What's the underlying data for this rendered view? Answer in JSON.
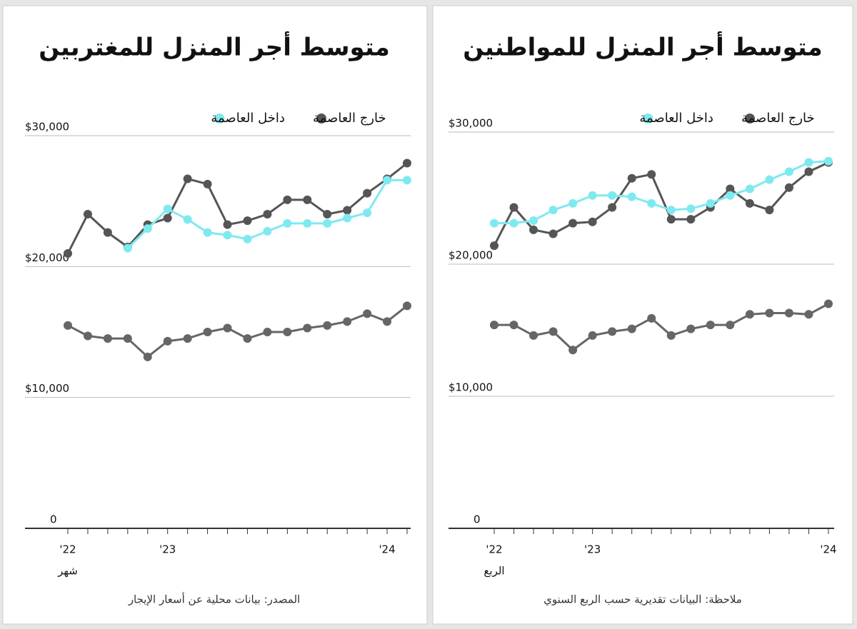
{
  "chart_data": [
    {
      "type": "line",
      "title": "متوسط أجر المنزل للمغتربين",
      "categories": [
        "'22",
        null,
        null,
        null,
        null,
        "'23",
        null,
        null,
        null,
        null,
        null,
        null,
        null,
        null,
        null,
        null,
        "'24",
        null
      ],
      "series": [
        {
          "name": "خارج العاصمة",
          "color": "#555555",
          "values": [
            21000,
            24000,
            22600,
            21500,
            23200,
            23700,
            26700,
            26300,
            23200,
            23500,
            24000,
            25100,
            25100,
            24000,
            24300,
            25600,
            26700,
            27900
          ]
        },
        {
          "name": "داخل العاصمة",
          "color": "#7fe9f0",
          "values": [
            null,
            null,
            null,
            21400,
            22900,
            24400,
            23600,
            22600,
            22400,
            22100,
            22700,
            23300,
            23300,
            23300,
            23700,
            24100,
            26600,
            26600
          ]
        },
        {
          "color": "#666666",
          "values": [
            15500,
            14700,
            14500,
            14500,
            13100,
            14300,
            14500,
            15000,
            15300,
            14500,
            15000,
            15000,
            15300,
            15500,
            15800,
            16400,
            15800,
            17000
          ]
        }
      ],
      "ylim": [
        0,
        30000
      ],
      "yticks": [
        0,
        {
          "value": 10000,
          "label": "$10,000"
        },
        {
          "value": 20000,
          "label": "$20,000"
        },
        {
          "value": 30000,
          "label": "$30,000"
        }
      ],
      "grid": true,
      "x_label": "شهر",
      "note": "المصدر: بيانات محلية عن أسعار الإيجار"
    },
    {
      "type": "line",
      "title": "متوسط أجر المنزل للمواطنين",
      "categories": [
        "'22",
        null,
        null,
        null,
        null,
        "'23",
        null,
        null,
        null,
        null,
        null,
        null,
        null,
        null,
        null,
        null,
        null,
        "'24"
      ],
      "series": [
        {
          "name": "خارج العاصمة",
          "color": "#555555",
          "values": [
            21400,
            24300,
            22600,
            22300,
            23100,
            23200,
            24300,
            26500,
            26800,
            23400,
            23400,
            24300,
            25700,
            24600,
            24100,
            25800,
            27000,
            27700
          ]
        },
        {
          "name": "داخل العاصمة",
          "color": "#7fe9f0",
          "values": [
            23100,
            23100,
            23300,
            24100,
            24600,
            25200,
            25200,
            25100,
            24600,
            24100,
            24200,
            24600,
            25200,
            25700,
            26400,
            27000,
            27700,
            27800
          ]
        },
        {
          "color": "#666666",
          "values": [
            15400,
            15400,
            14600,
            14900,
            13500,
            14600,
            14900,
            15100,
            15900,
            14600,
            15100,
            15400,
            15400,
            16200,
            16300,
            16300,
            16200,
            17000
          ]
        }
      ],
      "ylim": [
        0,
        30000
      ],
      "yticks": [
        0,
        {
          "value": 10000,
          "label": "$10,000"
        },
        {
          "value": 20000,
          "label": "$20,000"
        },
        {
          "value": 30000,
          "label": "$30,000"
        }
      ],
      "grid": true,
      "x_label": "الربع",
      "note": "ملاحظة: البيانات تقديرية حسب الربع السنوي"
    }
  ]
}
